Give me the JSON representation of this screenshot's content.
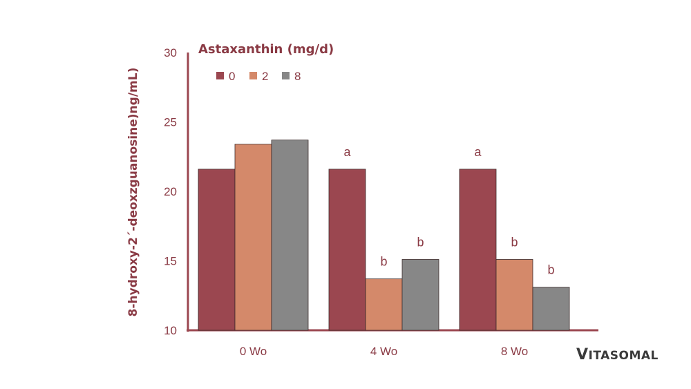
{
  "chart_data": {
    "type": "bar",
    "title": "Astaxanthin (mg/d)",
    "ylabel": "8-hydroxy-2´-deoxzguanosine)ng/mL)",
    "xlabel": "",
    "ylim": [
      10,
      30
    ],
    "yticks": [
      "10",
      "15",
      "20",
      "25",
      "30"
    ],
    "categories": [
      "0 Wo",
      "4 Wo",
      "8 Wo"
    ],
    "series": [
      {
        "name": "0",
        "color": "#9b4750",
        "values": [
          21.6,
          21.6,
          21.6
        ],
        "labels": [
          "",
          "a",
          "a"
        ]
      },
      {
        "name": "2",
        "color": "#d4896a",
        "values": [
          23.4,
          13.7,
          15.1
        ],
        "labels": [
          "",
          "b",
          "b"
        ]
      },
      {
        "name": "8",
        "color": "#878787",
        "values": [
          23.7,
          15.1,
          13.1
        ],
        "labels": [
          "",
          "b",
          "b"
        ]
      }
    ],
    "legend_position": "top-left",
    "grid": false
  },
  "colors": {
    "axis": "#9b4750",
    "text": "#8a3a44"
  },
  "brand": {
    "first": "V",
    "rest": "ITASOMAL"
  }
}
